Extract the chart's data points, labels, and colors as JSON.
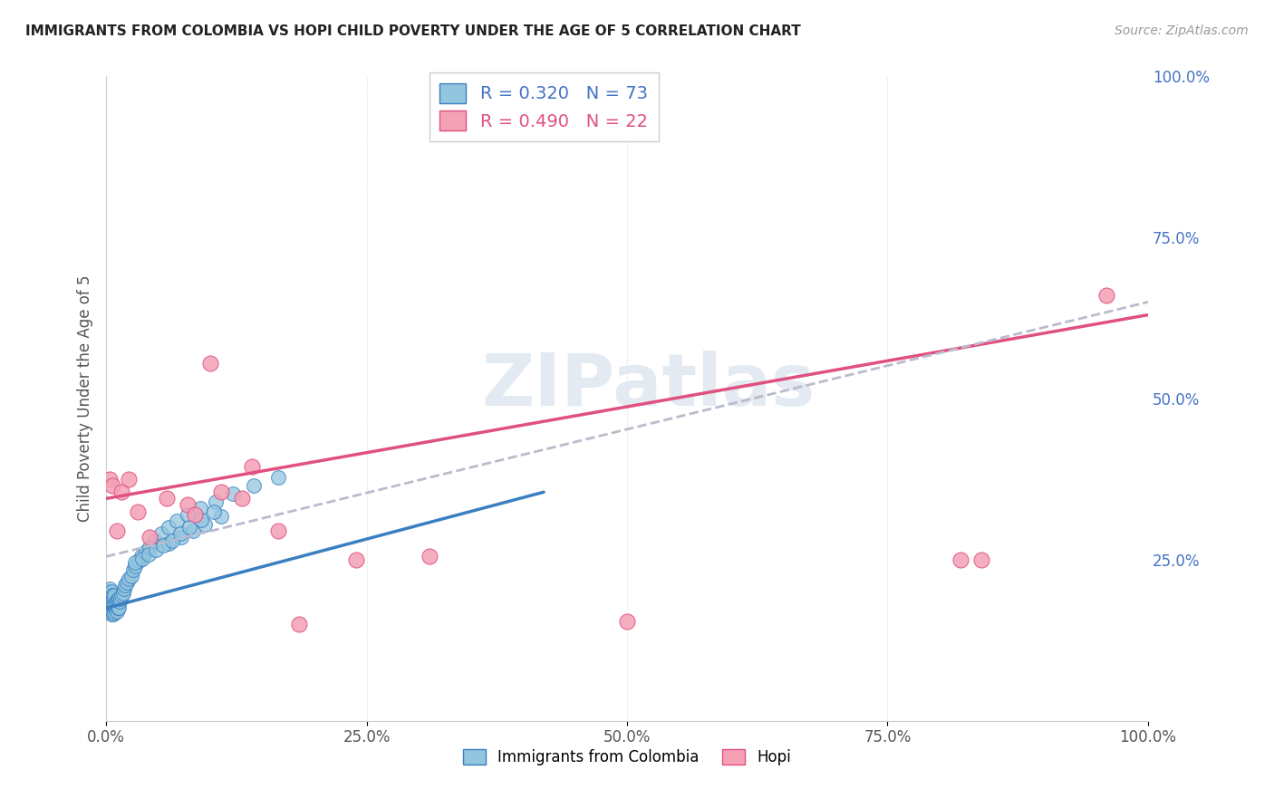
{
  "title": "IMMIGRANTS FROM COLOMBIA VS HOPI CHILD POVERTY UNDER THE AGE OF 5 CORRELATION CHART",
  "source": "Source: ZipAtlas.com",
  "ylabel": "Child Poverty Under the Age of 5",
  "legend_label1": "Immigrants from Colombia",
  "legend_label2": "Hopi",
  "R1": 0.32,
  "N1": 73,
  "R2": 0.49,
  "N2": 22,
  "color_blue": "#92c5de",
  "color_pink": "#f4a0b5",
  "color_line_blue": "#3a7fc1",
  "color_line_pink": "#e05080",
  "color_dashed": "#bbbbcc",
  "xlim": [
    0,
    1
  ],
  "ylim": [
    0,
    1
  ],
  "xticks": [
    0,
    0.25,
    0.5,
    0.75,
    1.0
  ],
  "yticks": [
    0,
    0.25,
    0.5,
    0.75,
    1.0
  ],
  "xticklabels": [
    "0.0%",
    "25.0%",
    "50.0%",
    "75.0%",
    "100.0%"
  ],
  "yticklabels": [
    "",
    "25.0%",
    "50.0%",
    "75.0%",
    "100.0%"
  ],
  "blue_x": [
    0.001,
    0.001,
    0.002,
    0.002,
    0.002,
    0.003,
    0.003,
    0.003,
    0.003,
    0.004,
    0.004,
    0.004,
    0.005,
    0.005,
    0.005,
    0.005,
    0.006,
    0.006,
    0.006,
    0.007,
    0.007,
    0.007,
    0.008,
    0.008,
    0.008,
    0.009,
    0.009,
    0.01,
    0.01,
    0.011,
    0.011,
    0.012,
    0.012,
    0.013,
    0.014,
    0.015,
    0.016,
    0.017,
    0.018,
    0.02,
    0.022,
    0.024,
    0.026,
    0.028,
    0.031,
    0.034,
    0.038,
    0.042,
    0.047,
    0.053,
    0.06,
    0.068,
    0.078,
    0.09,
    0.105,
    0.122,
    0.142,
    0.165,
    0.06,
    0.072,
    0.083,
    0.095,
    0.11,
    0.028,
    0.035,
    0.041,
    0.048,
    0.055,
    0.063,
    0.071,
    0.08,
    0.091,
    0.103
  ],
  "blue_y": [
    0.17,
    0.19,
    0.18,
    0.2,
    0.175,
    0.175,
    0.185,
    0.195,
    0.205,
    0.17,
    0.18,
    0.19,
    0.165,
    0.175,
    0.185,
    0.2,
    0.17,
    0.18,
    0.195,
    0.165,
    0.178,
    0.192,
    0.168,
    0.18,
    0.195,
    0.172,
    0.185,
    0.17,
    0.183,
    0.175,
    0.188,
    0.175,
    0.19,
    0.185,
    0.19,
    0.195,
    0.198,
    0.205,
    0.21,
    0.215,
    0.22,
    0.225,
    0.235,
    0.24,
    0.248,
    0.255,
    0.262,
    0.27,
    0.28,
    0.29,
    0.3,
    0.31,
    0.32,
    0.33,
    0.34,
    0.352,
    0.365,
    0.378,
    0.275,
    0.285,
    0.295,
    0.305,
    0.318,
    0.245,
    0.252,
    0.258,
    0.265,
    0.272,
    0.28,
    0.29,
    0.3,
    0.312,
    0.325
  ],
  "pink_x": [
    0.003,
    0.006,
    0.01,
    0.015,
    0.022,
    0.03,
    0.042,
    0.058,
    0.078,
    0.1,
    0.13,
    0.165,
    0.085,
    0.11,
    0.14,
    0.185,
    0.24,
    0.31,
    0.5,
    0.82,
    0.84,
    0.96
  ],
  "pink_y": [
    0.375,
    0.365,
    0.295,
    0.355,
    0.375,
    0.325,
    0.285,
    0.345,
    0.335,
    0.555,
    0.345,
    0.295,
    0.32,
    0.355,
    0.395,
    0.15,
    0.25,
    0.255,
    0.155,
    0.25,
    0.25,
    0.66
  ],
  "blue_line_x0": 0.0,
  "blue_line_x1": 0.42,
  "blue_line_y0": 0.175,
  "blue_line_y1": 0.355,
  "pink_line_x0": 0.0,
  "pink_line_x1": 1.0,
  "pink_line_y0": 0.345,
  "pink_line_y1": 0.63,
  "dash_line_x0": 0.0,
  "dash_line_x1": 1.0,
  "dash_line_y0": 0.255,
  "dash_line_y1": 0.65,
  "watermark": "ZIPatlas",
  "background_color": "#ffffff",
  "grid_color": "#dddddd"
}
